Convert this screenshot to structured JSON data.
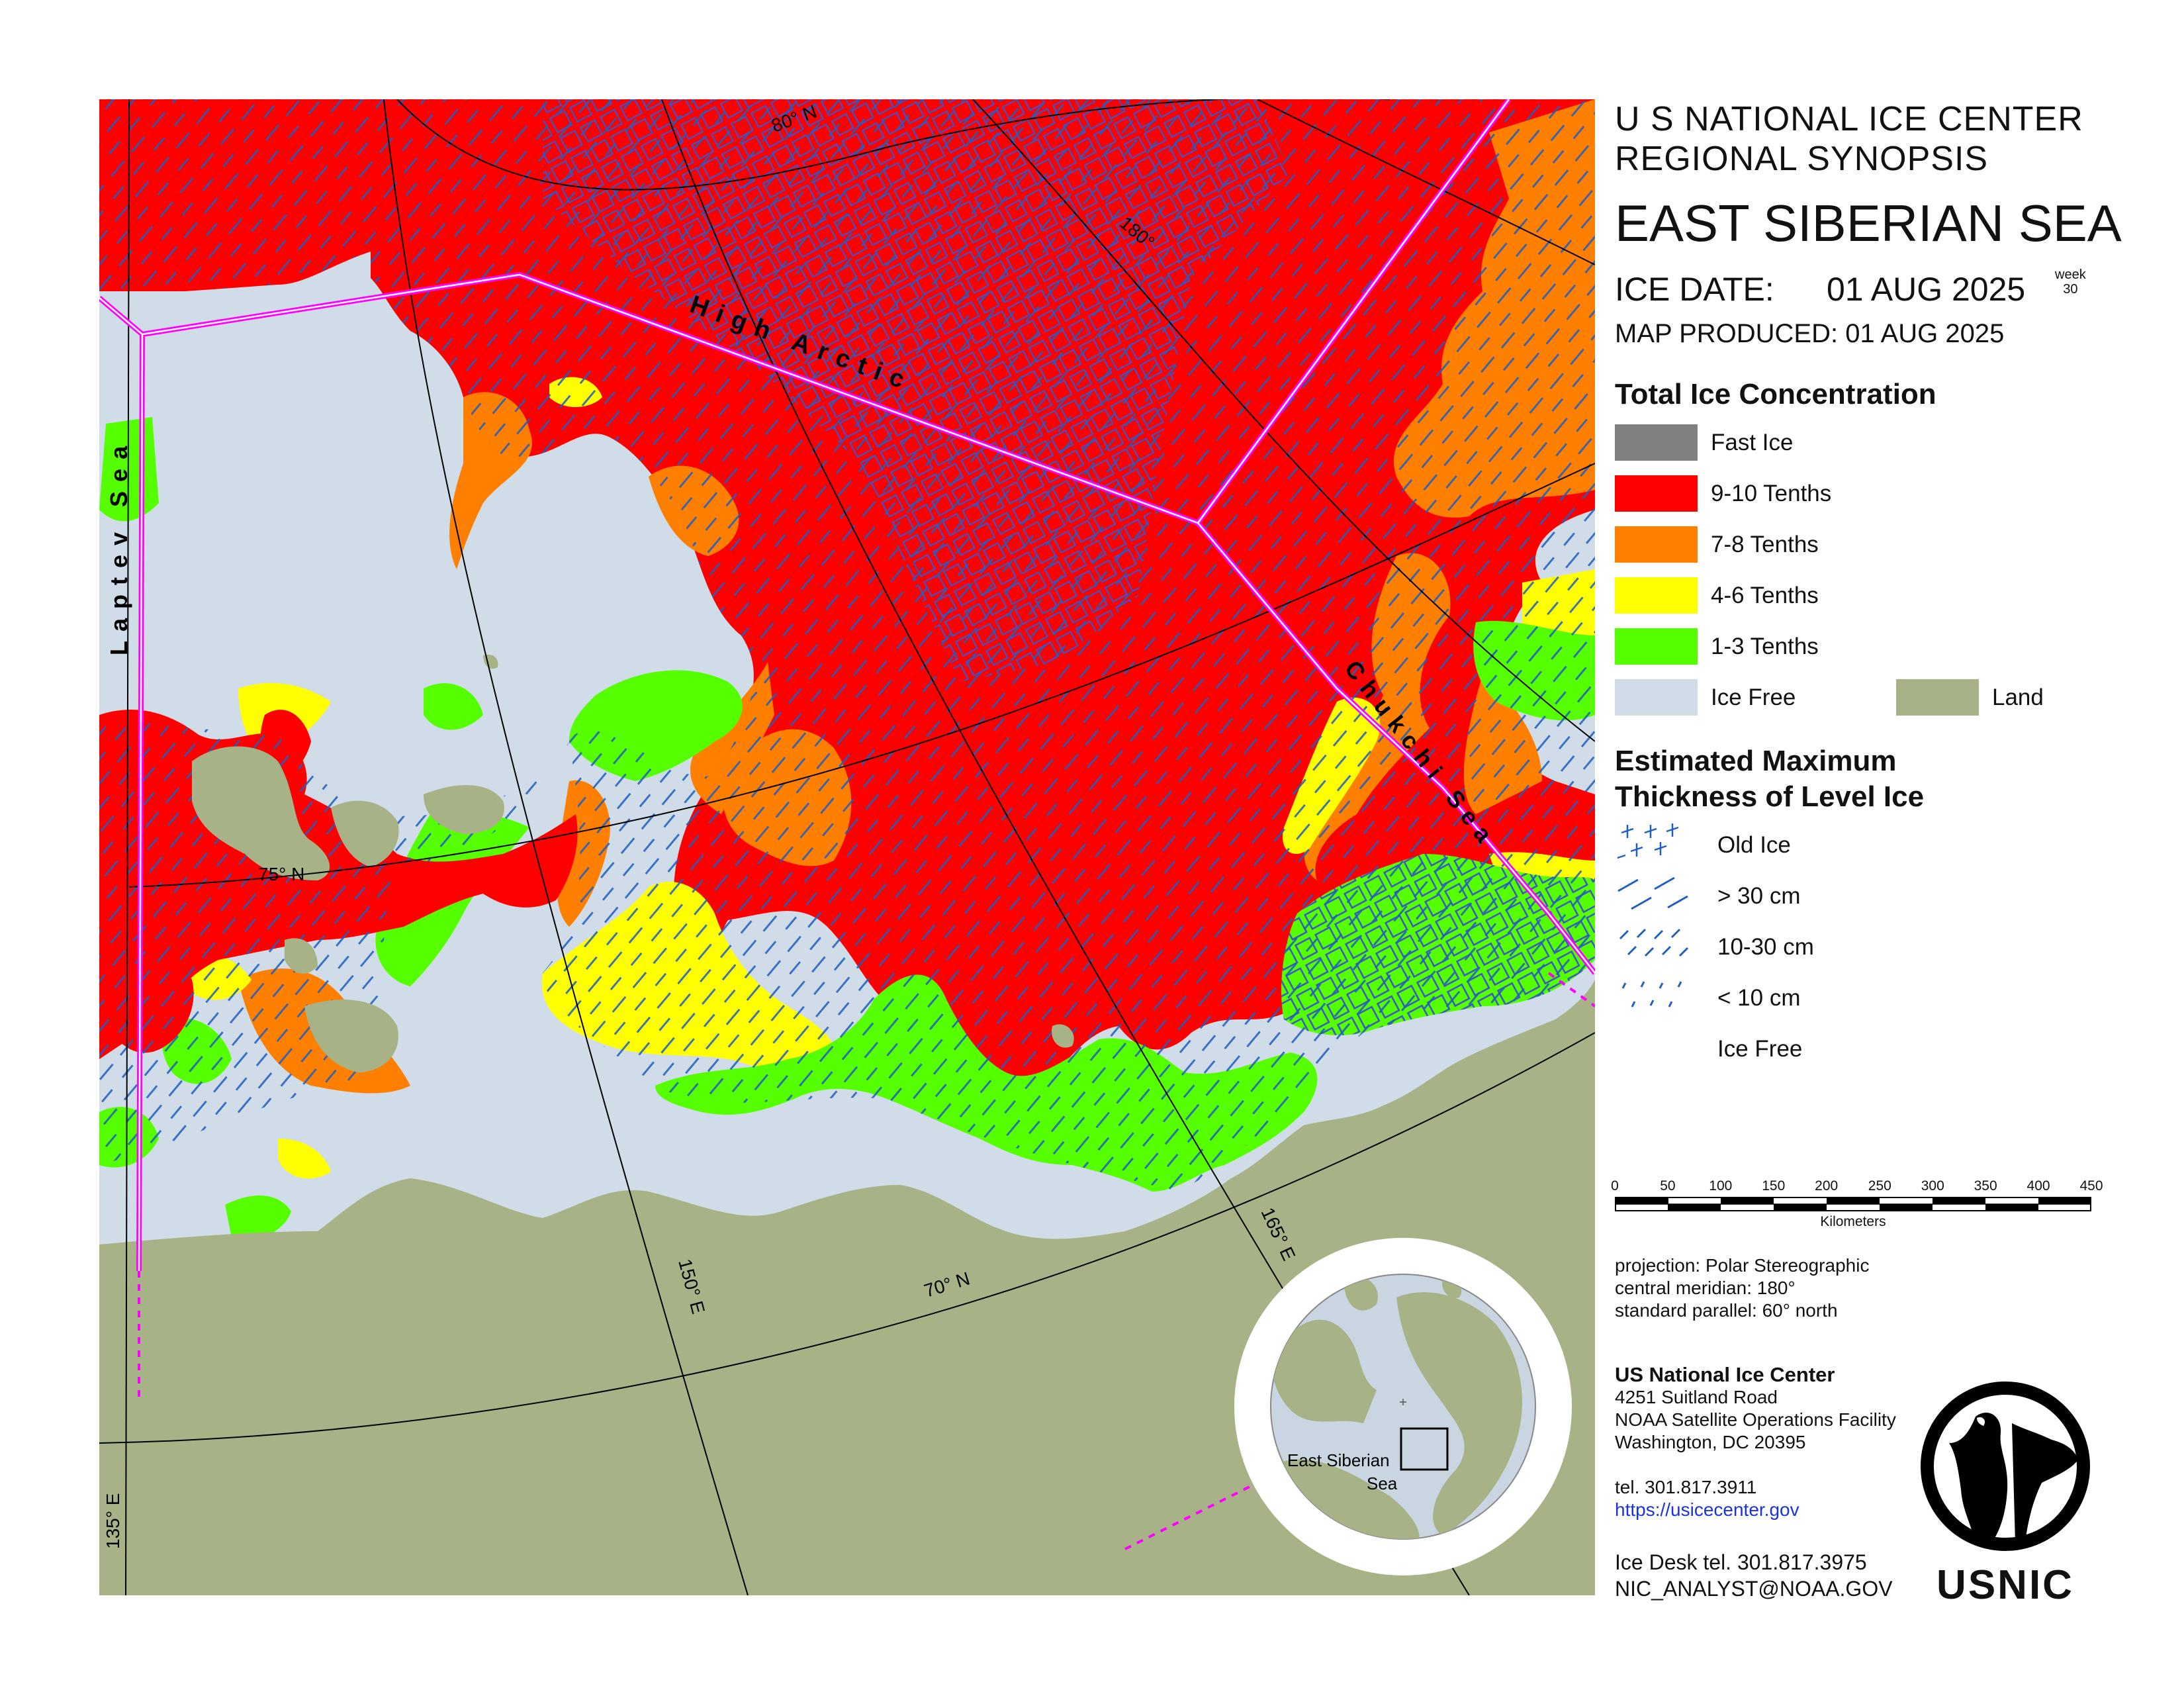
{
  "header": {
    "line1": "U S NATIONAL ICE CENTER",
    "line2": "REGIONAL SYNOPSIS",
    "region": "EAST SIBERIAN SEA",
    "ice_date_label": "ICE DATE:",
    "ice_date": "01 AUG 2025",
    "week_label": "week",
    "week_number": "30",
    "map_produced": "MAP PRODUCED:  01 AUG 2025"
  },
  "legend": {
    "concentration_title": "Total Ice Concentration",
    "concentration": [
      {
        "label": "Fast Ice",
        "color": "#808080"
      },
      {
        "label": "9-10 Tenths",
        "color": "#ff0000"
      },
      {
        "label": "7-8 Tenths",
        "color": "#ff7f00"
      },
      {
        "label": "4-6 Tenths",
        "color": "#ffff00"
      },
      {
        "label": "1-3 Tenths",
        "color": "#55ff00"
      },
      {
        "label": "Ice Free",
        "color": "#d0dde9"
      },
      {
        "label": "Land",
        "color": "#a8b287"
      }
    ],
    "thickness_title_1": "Estimated Maximum",
    "thickness_title_2": "Thickness of Level Ice",
    "thickness": [
      {
        "label": "Old Ice",
        "pattern": "grid"
      },
      {
        "label": "> 30 cm",
        "pattern": "long-dash"
      },
      {
        "label": "10-30 cm",
        "pattern": "short-dash"
      },
      {
        "label": "< 10 cm",
        "pattern": "dots"
      },
      {
        "label": "Ice Free",
        "pattern": "none"
      }
    ]
  },
  "scale": {
    "ticks": [
      "0",
      "50",
      "100",
      "150",
      "200",
      "250",
      "300",
      "350",
      "400",
      "450"
    ],
    "unit": "Kilometers"
  },
  "projection": {
    "line1": "projection: Polar Stereographic",
    "line2": "central meridian: 180°",
    "line3": "standard parallel:  60° north"
  },
  "contact": {
    "org": "US National Ice Center",
    "address1": "4251 Suitland Road",
    "address2": "NOAA Satellite Operations Facility",
    "address3": "Washington, DC  20395",
    "tel": "tel. 301.817.3911",
    "url": "https://usicecenter.gov",
    "ice_desk": "Ice Desk tel. 301.817.3975",
    "email": "NIC_ANALYST@NOAA.GOV"
  },
  "logo": {
    "text": "USNIC"
  },
  "map_labels": {
    "high_arctic": "High Arctic",
    "laptev": "Laptev Sea",
    "chukchi": "Chukchi Sea",
    "lat_80": "80° N",
    "lat_75": "75° N",
    "lat_70": "70° N",
    "lon_180": "180°",
    "lon_165": "165° E",
    "lon_150": "150° E",
    "lon_135": "135° E",
    "inset_label_1": "East Siberian",
    "inset_label_2": "Sea"
  },
  "colors": {
    "fast_ice": "#808080",
    "ice_9_10": "#ff0000",
    "ice_7_8": "#ff7f00",
    "ice_4_6": "#ffff00",
    "ice_1_3": "#55ff00",
    "ice_free": "#d0dde9",
    "land": "#a8b287",
    "boundary": "#ff00ff",
    "thickness_pattern": "#1f5fbf"
  }
}
